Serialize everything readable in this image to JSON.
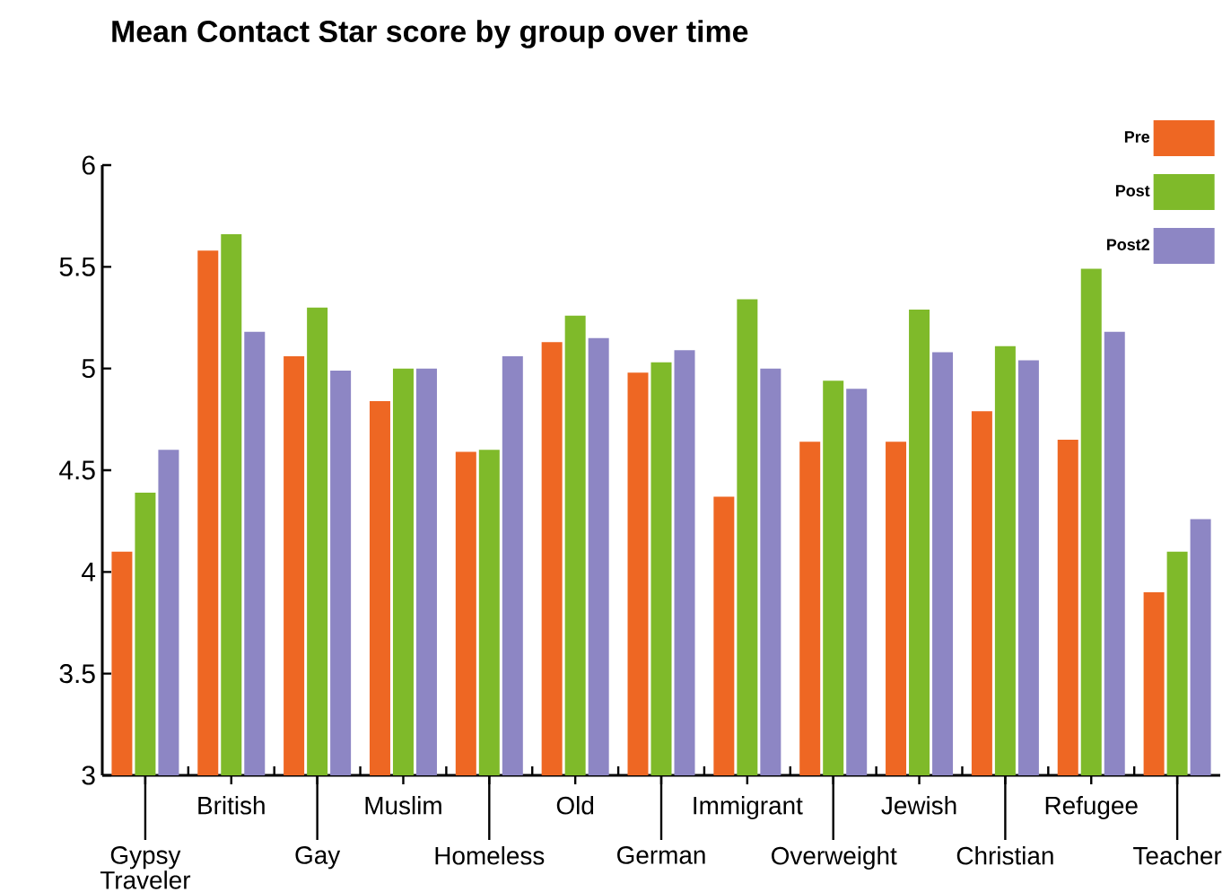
{
  "chart_data": {
    "type": "bar",
    "title": "Mean Contact Star score by group over time",
    "categories": [
      "Gypsy Traveler",
      "British",
      "Gay",
      "Muslim",
      "Homeless",
      "Old",
      "German",
      "Immigrant",
      "Overweight",
      "Jewish",
      "Christian",
      "Refugee",
      "Teacher"
    ],
    "series": [
      {
        "name": "Pre",
        "color": "#ee6723",
        "values": [
          4.1,
          5.58,
          5.06,
          4.84,
          4.59,
          5.13,
          4.98,
          4.37,
          4.64,
          4.64,
          4.79,
          4.65,
          3.9
        ]
      },
      {
        "name": "Post",
        "color": "#7fba2a",
        "values": [
          4.39,
          5.66,
          5.3,
          5.0,
          4.6,
          5.26,
          5.03,
          5.34,
          4.94,
          5.29,
          5.11,
          5.49,
          4.1
        ]
      },
      {
        "name": "Post2",
        "color": "#8d86c4",
        "values": [
          4.6,
          5.18,
          4.99,
          5.0,
          5.06,
          5.15,
          5.09,
          5.0,
          4.9,
          5.08,
          5.04,
          5.18,
          4.26
        ]
      }
    ],
    "ylim": [
      3,
      6
    ],
    "yticks": [
      3,
      3.5,
      4,
      4.5,
      5,
      5.5,
      6
    ],
    "grid": false,
    "legend": "top right"
  }
}
